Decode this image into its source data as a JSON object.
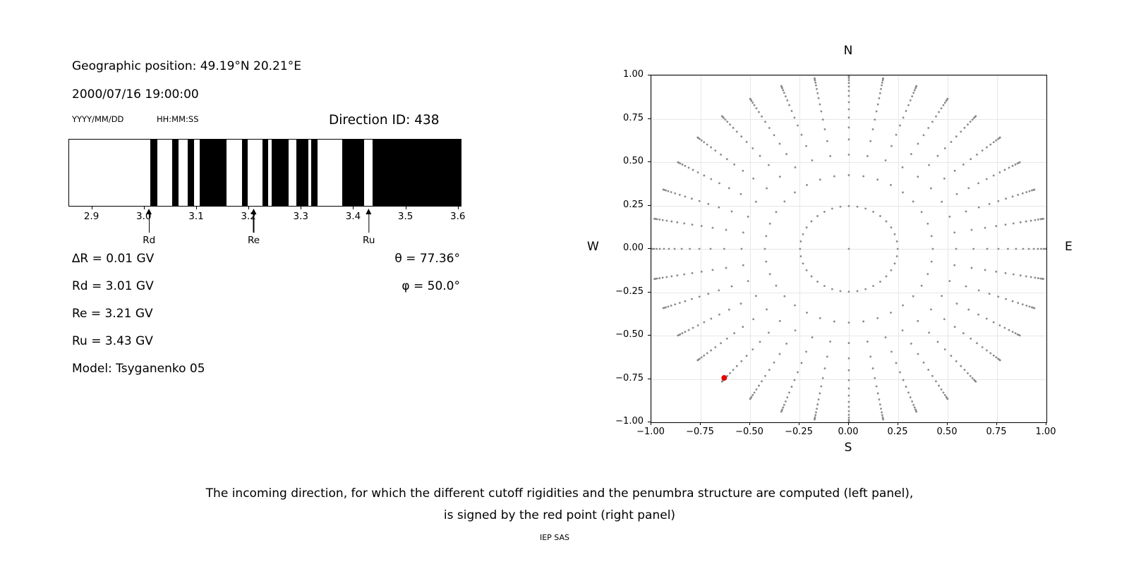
{
  "header": {
    "geo_position": "Geographic position: 49.19°N 20.21°E",
    "datetime": "2000/07/16 19:00:00",
    "date_format_label": "YYYY/MM/DD",
    "time_format_label": "HH:MM:SS",
    "direction_id": "Direction ID: 438"
  },
  "left_values": {
    "delta_r": "∆R = 0.01 GV",
    "rd": "Rd = 3.01 GV",
    "re": "Re = 3.21 GV",
    "ru": "Ru = 3.43 GV",
    "model": "Model: Tsyganenko 05",
    "theta": "θ = 77.36°",
    "phi": "φ = 50.0°"
  },
  "caption": {
    "line1": "The incoming direction, for which the different cutoff rigidities and the penumbra structure are computed (left panel),",
    "line2": "is signed by the red point (right panel)"
  },
  "footer": "IEP SAS",
  "chart_data": [
    {
      "type": "bar",
      "name": "penumbra-structure-barcode",
      "xlim": [
        2.856,
        3.607
      ],
      "xticks": [
        2.9,
        3.0,
        3.1,
        3.2,
        3.3,
        3.4,
        3.5,
        3.6
      ],
      "xtick_labels": [
        "2.9",
        "3.0",
        "3.1",
        "3.2",
        "3.3",
        "3.4",
        "3.5",
        "3.6"
      ],
      "black_bands_gv": [
        [
          3.012,
          3.025
        ],
        [
          3.053,
          3.066
        ],
        [
          3.083,
          3.095
        ],
        [
          3.106,
          3.158
        ],
        [
          3.187,
          3.199
        ],
        [
          3.227,
          3.238
        ],
        [
          3.245,
          3.277
        ],
        [
          3.292,
          3.315
        ],
        [
          3.32,
          3.332
        ],
        [
          3.38,
          3.421
        ],
        [
          3.438,
          3.607
        ]
      ],
      "markers": [
        {
          "label": "Rd",
          "value": 3.01
        },
        {
          "label": "Re",
          "value": 3.21
        },
        {
          "label": "Ru",
          "value": 3.43
        }
      ]
    },
    {
      "type": "scatter",
      "name": "incoming-directions-sky-map",
      "xlim": [
        -1.0,
        1.0
      ],
      "ylim": [
        -1.0,
        1.0
      ],
      "grid": true,
      "xticks": [
        -1.0,
        -0.75,
        -0.5,
        -0.25,
        0.0,
        0.25,
        0.5,
        0.75,
        1.0
      ],
      "yticks": [
        -1.0,
        -0.75,
        -0.5,
        -0.25,
        0.0,
        0.25,
        0.5,
        0.75,
        1.0
      ],
      "xtick_labels": [
        "−1.00",
        "−0.75",
        "−0.50",
        "−0.25",
        "0.00",
        "0.25",
        "0.50",
        "0.75",
        "1.00"
      ],
      "ytick_labels": [
        "−1.00",
        "−0.75",
        "−0.50",
        "−0.25",
        "0.00",
        "0.25",
        "0.50",
        "0.75",
        "1.00"
      ],
      "compass_labels": {
        "top": "N",
        "bottom": "S",
        "left": "W",
        "right": "E"
      },
      "azimuth_step_deg": 10,
      "ray_radii": [
        0.247,
        0.425,
        0.543,
        0.631,
        0.7,
        0.757,
        0.805,
        0.846,
        0.882,
        0.911,
        0.936,
        0.957,
        0.973,
        0.986,
        0.994,
        0.999
      ],
      "center_point": [
        0,
        0
      ],
      "highlight_point": {
        "x": -0.631,
        "y": -0.744,
        "color": "#e60000"
      },
      "dot_color": "#8a8a8a"
    }
  ]
}
